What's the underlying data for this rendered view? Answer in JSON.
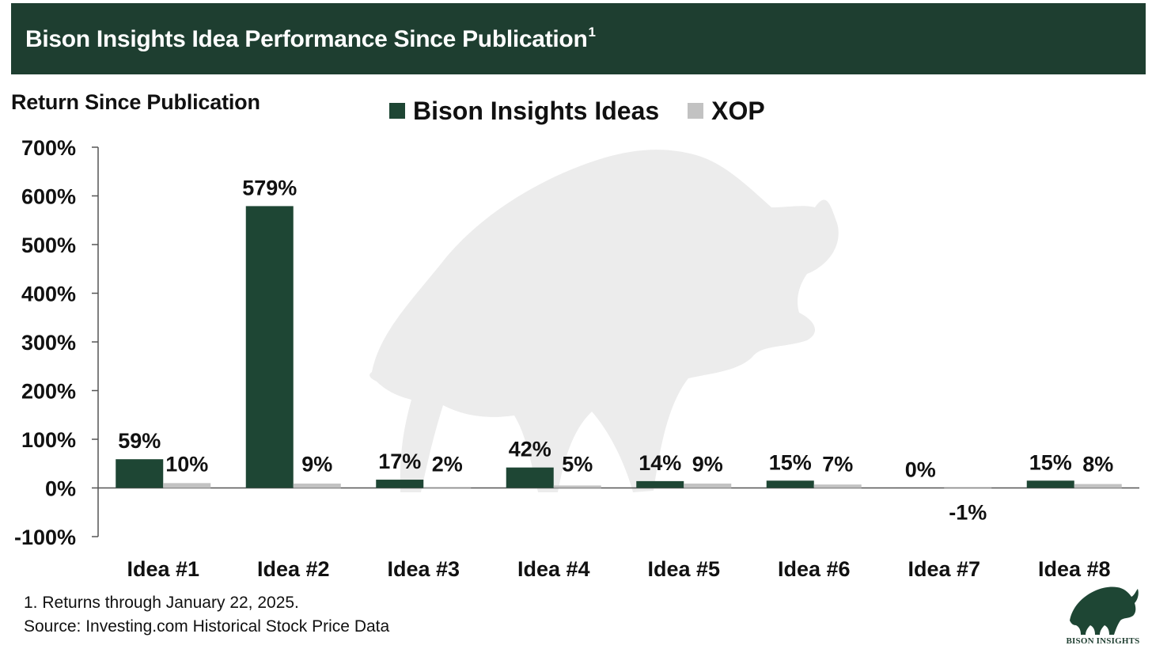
{
  "header": {
    "title": "Bison Insights Idea Performance Since Publication",
    "title_sup": "1"
  },
  "colors": {
    "header_bg": "#1e3e30",
    "series_primary": "#1e4634",
    "series_secondary": "#c2c2c2",
    "watermark": "#ececec"
  },
  "chart_data": {
    "type": "bar",
    "ylabel": "Return Since Publication",
    "xlabel": "",
    "ylim": [
      -100,
      700
    ],
    "yticks": [
      700,
      600,
      500,
      400,
      300,
      200,
      100,
      0,
      -100
    ],
    "ytick_labels": [
      "700%",
      "600%",
      "500%",
      "400%",
      "300%",
      "200%",
      "100%",
      "0%",
      "-100%"
    ],
    "categories": [
      "Idea #1",
      "Idea #2",
      "Idea #3",
      "Idea #4",
      "Idea #5",
      "Idea #6",
      "Idea #7",
      "Idea #8"
    ],
    "series": [
      {
        "name": "Bison Insights Ideas",
        "color": "#1e4634",
        "values": [
          59,
          579,
          17,
          42,
          14,
          15,
          0,
          15
        ],
        "labels": [
          "59%",
          "579%",
          "17%",
          "42%",
          "14%",
          "15%",
          "0%",
          "15%"
        ]
      },
      {
        "name": "XOP",
        "color": "#c2c2c2",
        "values": [
          10,
          9,
          2,
          5,
          9,
          7,
          -1,
          8
        ],
        "labels": [
          "10%",
          "9%",
          "2%",
          "5%",
          "9%",
          "7%",
          "-1%",
          "8%"
        ]
      }
    ],
    "legend_position": "top",
    "grid": false
  },
  "footnotes": {
    "note": "1. Returns through January 22, 2025.",
    "source": "Source: Investing.com Historical Stock Price Data"
  },
  "logo": {
    "text": "BISON INSIGHTS",
    "icon": "bison-logo-icon"
  },
  "watermark": {
    "icon": "bison-watermark-icon"
  }
}
